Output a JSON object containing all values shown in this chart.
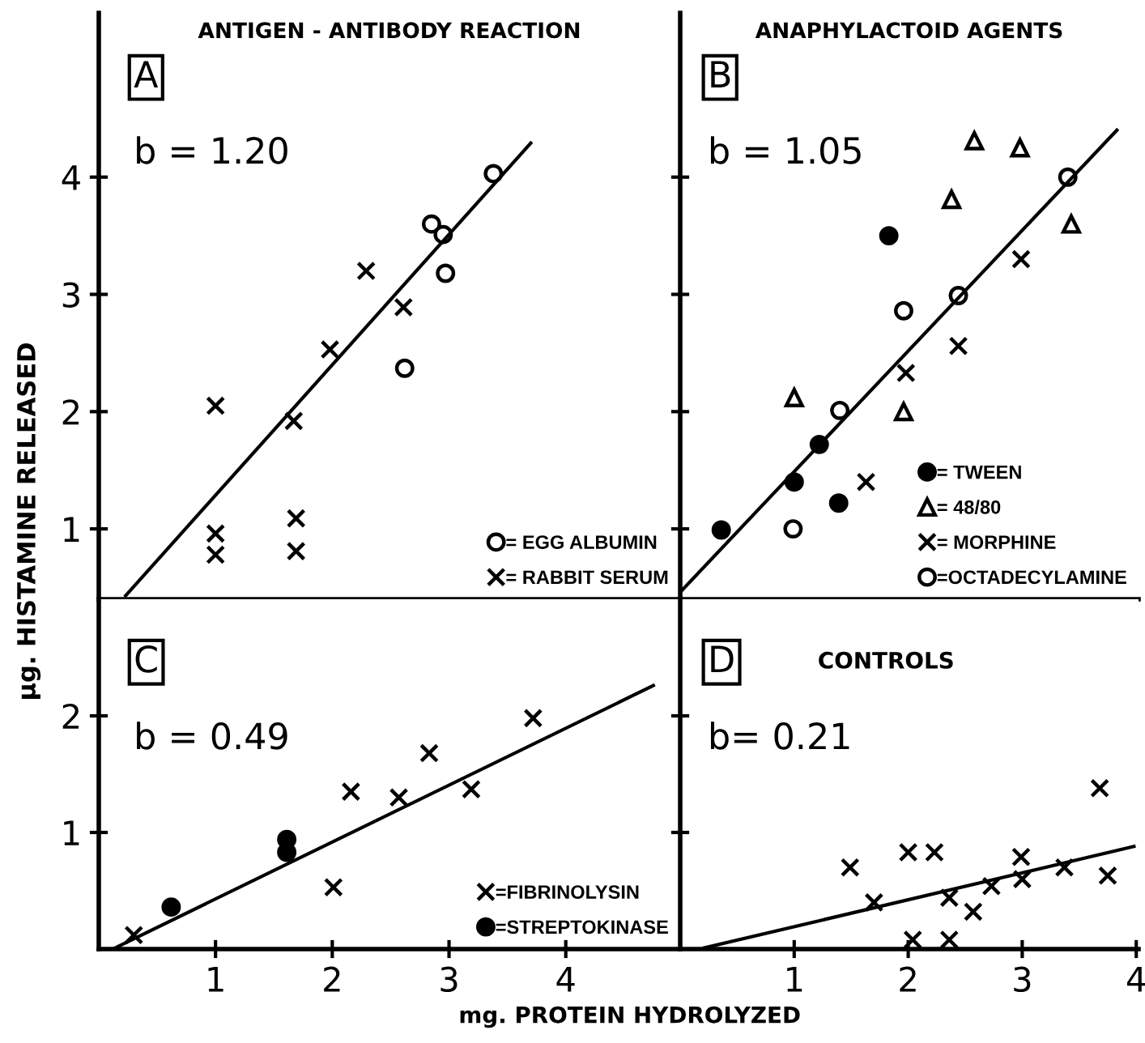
{
  "chart_data": [
    {
      "type": "scatter",
      "title": "ANTIGEN - ANTIBODY REACTION",
      "ylabel": "μg. HISTAMINE RELEASED",
      "xlim": [
        0,
        4.98
      ],
      "ylim": [
        0.4,
        5.4
      ],
      "yticks": [
        1,
        2,
        3,
        4
      ],
      "tick_labels": "y",
      "grid": false,
      "legend": "bottom right",
      "annotations": [
        "A",
        "b = 1.20"
      ],
      "series": [
        {
          "name": "= EGG ALBUMIN",
          "color": "#000000",
          "marker": "circle",
          "x": [
            3.38,
            2.85,
            2.95,
            2.97,
            2.62
          ],
          "values": [
            4.03,
            3.6,
            3.51,
            3.18,
            2.37
          ]
        },
        {
          "name": "= RABBIT SERUM",
          "color": "#000000",
          "marker": "cross",
          "x": [
            1.0,
            1.67,
            1.98,
            2.29,
            2.61,
            1.69,
            1.69,
            1.0,
            1.0
          ],
          "values": [
            2.05,
            1.92,
            2.53,
            3.2,
            2.89,
            1.09,
            0.81,
            0.96,
            0.78
          ]
        },
        {
          "type": "line",
          "color": "#000000",
          "marker": "none",
          "x": [
            0.23,
            3.7
          ],
          "values": [
            0.43,
            4.29
          ]
        }
      ]
    },
    {
      "type": "scatter",
      "title": "ANAPHYLACTOID AGENTS",
      "xlim": [
        0,
        4.02
      ],
      "ylim": [
        0.4,
        5.4
      ],
      "yticks": [
        {
          "value": 1,
          "label": null
        },
        {
          "value": 2,
          "label": null
        },
        {
          "value": 3,
          "label": null
        },
        {
          "value": 4,
          "label": null
        }
      ],
      "tick_labels": false,
      "grid": false,
      "legend": "bottom right",
      "annotations": [
        "B",
        "b = 1.05"
      ],
      "series": [
        {
          "name": "= TWEEN",
          "color": "#000000",
          "marker": "dot",
          "x": [
            0.36,
            1.0,
            1.22,
            1.39,
            1.83
          ],
          "values": [
            0.99,
            1.4,
            1.72,
            1.22,
            3.5
          ]
        },
        {
          "name": "= 48/80",
          "color": "#000000",
          "marker": "triangle",
          "x": [
            1.0,
            1.96,
            2.38,
            2.58,
            2.98,
            3.43
          ],
          "values": [
            2.12,
            2.0,
            3.81,
            4.31,
            4.25,
            3.6
          ]
        },
        {
          "name": "= MORPHINE",
          "color": "#000000",
          "marker": "cross",
          "x": [
            1.63,
            1.98,
            2.44,
            2.99
          ],
          "values": [
            1.4,
            2.33,
            2.56,
            3.3
          ]
        },
        {
          "name": "=OCTADECYLAMINE",
          "color": "#000000",
          "marker": "circle",
          "x": [
            0.99,
            1.4,
            1.96,
            2.44,
            3.4
          ],
          "values": [
            1.0,
            2.01,
            2.86,
            2.99,
            4.0
          ]
        },
        {
          "type": "line",
          "color": "#000000",
          "marker": "none",
          "x": [
            0.0,
            3.83
          ],
          "values": [
            0.46,
            4.4
          ]
        }
      ]
    },
    {
      "type": "scatter",
      "xlabel": "mg. PROTEIN HYDROLYZED",
      "xlim": [
        0,
        4.98
      ],
      "ylim": [
        0,
        3.0
      ],
      "xticks": [
        1,
        2,
        3,
        4
      ],
      "yticks": [
        1,
        2
      ],
      "grid": false,
      "legend": "bottom right",
      "annotations": [
        "C",
        "b = 0.49"
      ],
      "series": [
        {
          "name": "=FIBRINOLYSIN",
          "color": "#000000",
          "marker": "cross",
          "x": [
            0.3,
            2.01,
            2.16,
            2.57,
            2.83,
            3.19,
            3.72
          ],
          "values": [
            0.12,
            0.53,
            1.35,
            1.3,
            1.68,
            1.37,
            1.98
          ]
        },
        {
          "name": "=STREPTOKINASE",
          "color": "#000000",
          "marker": "dot",
          "x": [
            0.62,
            1.61,
            1.61
          ],
          "values": [
            0.36,
            0.94,
            0.83
          ]
        },
        {
          "type": "line",
          "color": "#000000",
          "marker": "none",
          "x": [
            0.14,
            4.75
          ],
          "values": [
            0.01,
            2.26
          ]
        }
      ]
    },
    {
      "type": "scatter",
      "xlim": [
        0,
        4.02
      ],
      "ylim": [
        0,
        3.0
      ],
      "xticks": [
        1,
        2,
        3,
        4
      ],
      "yticks": [
        {
          "value": 1,
          "label": null
        },
        {
          "value": 2,
          "label": null
        }
      ],
      "tick_labels": "x",
      "grid": false,
      "annotations": [
        "D",
        "b= 0.21",
        "CONTROLS"
      ],
      "series": [
        {
          "color": "#000000",
          "marker": "cross",
          "x": [
            1.49,
            1.7,
            2.0,
            2.23,
            2.04,
            2.36,
            2.36,
            2.57,
            2.73,
            2.99,
            3.0,
            3.37,
            3.75,
            3.68
          ],
          "values": [
            0.7,
            0.4,
            0.83,
            0.83,
            0.08,
            0.08,
            0.44,
            0.32,
            0.54,
            0.79,
            0.6,
            0.7,
            0.63,
            1.38
          ]
        },
        {
          "type": "line",
          "color": "#000000",
          "marker": "none",
          "x": [
            0.21,
            3.98
          ],
          "values": [
            0.01,
            0.88
          ]
        }
      ]
    }
  ]
}
